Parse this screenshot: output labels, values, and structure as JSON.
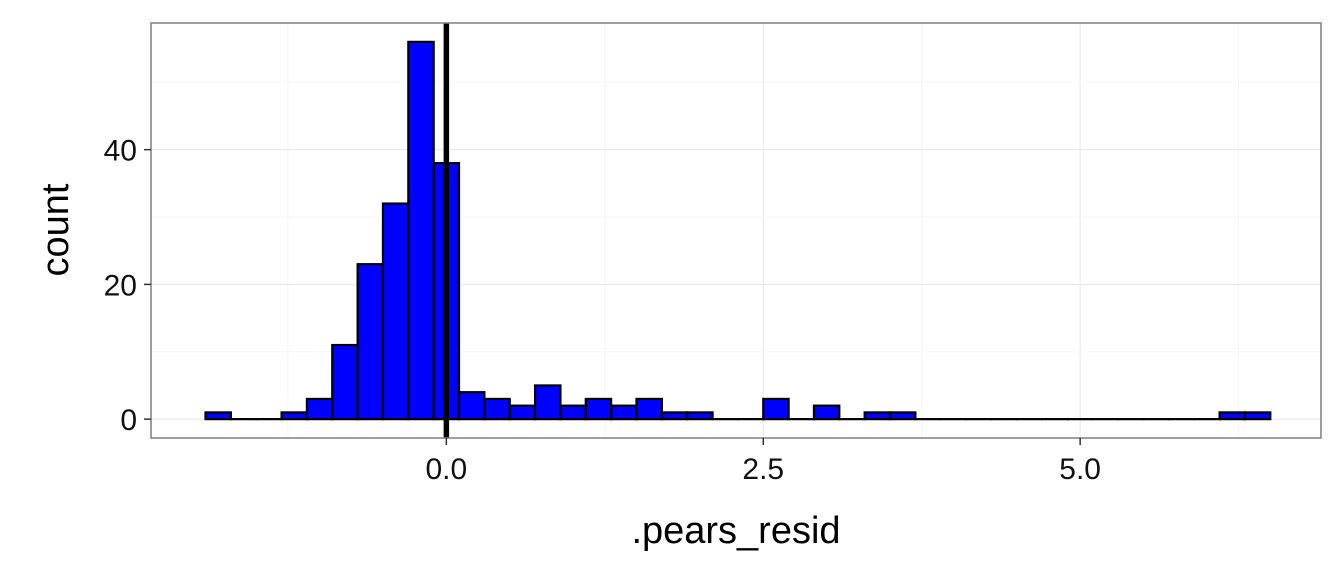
{
  "chart_data": {
    "type": "bar",
    "xlabel": ".pears_resid",
    "ylabel": "count",
    "xlim": [
      -2.33,
      6.9
    ],
    "ylim": [
      -2.8,
      58.8
    ],
    "x_ticks": [
      {
        "value": 0.0,
        "label": "0.0"
      },
      {
        "value": 2.5,
        "label": "2.5"
      },
      {
        "value": 5.0,
        "label": "5.0"
      }
    ],
    "y_ticks": [
      {
        "value": 0,
        "label": "0"
      },
      {
        "value": 20,
        "label": "20"
      },
      {
        "value": 40,
        "label": "40"
      }
    ],
    "bin_start": -1.9,
    "bin_width": 0.2,
    "counts": [
      1,
      0,
      0,
      1,
      3,
      11,
      23,
      32,
      56,
      38,
      4,
      3,
      2,
      5,
      2,
      3,
      2,
      3,
      1,
      1,
      0,
      0,
      3,
      0,
      2,
      0,
      1,
      1,
      0,
      0,
      0,
      0,
      0,
      0,
      0,
      0,
      0,
      0,
      0,
      0,
      1,
      1
    ],
    "bar_fill": "#0000ff",
    "bar_outline": "#000000",
    "vline": {
      "x": 0.0,
      "color": "#000000"
    },
    "grid": true,
    "background": "#ffffff",
    "panel_border": "#7f7f7f"
  }
}
